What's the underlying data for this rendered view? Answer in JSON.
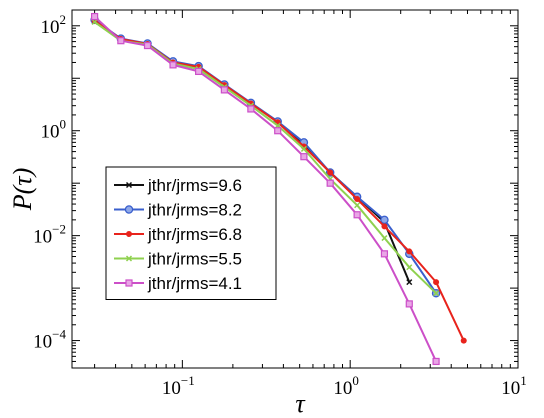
{
  "chart_data": {
    "type": "line",
    "xscale": "log",
    "yscale": "log",
    "xlim": [
      0.022,
      10
    ],
    "ylim": [
      3e-05,
      200
    ],
    "xlabel": "τ",
    "ylabel": "P(τ)",
    "xticks": [
      {
        "value": 0.1,
        "base": "10",
        "exp": "−1"
      },
      {
        "value": 1,
        "base": "10",
        "exp": "0"
      },
      {
        "value": 10,
        "base": "10",
        "exp": "1"
      }
    ],
    "yticks": [
      {
        "value": 100,
        "base": "10",
        "exp": "2"
      },
      {
        "value": 1,
        "base": "10",
        "exp": "0"
      },
      {
        "value": 0.01,
        "base": "10",
        "exp": "−2"
      },
      {
        "value": 0.0001,
        "base": "10",
        "exp": "−4"
      }
    ],
    "grid": false,
    "legend_position": "bottom-left",
    "series": [
      {
        "name": "jthr/jrms=9.6",
        "color": "#111111",
        "marker": "x",
        "x": [
          0.03,
          0.043,
          0.062,
          0.088,
          0.125,
          0.178,
          0.256,
          0.37,
          0.53,
          0.76,
          1.1,
          1.6,
          2.25
        ],
        "y": [
          120,
          55,
          45,
          20,
          16,
          7.5,
          3.3,
          1.5,
          0.52,
          0.16,
          0.055,
          0.018,
          0.0013
        ]
      },
      {
        "name": "jthr/jrms=8.2",
        "color": "#3a5fcd",
        "marker": "o",
        "x": [
          0.03,
          0.043,
          0.062,
          0.088,
          0.125,
          0.178,
          0.256,
          0.37,
          0.53,
          0.76,
          1.1,
          1.6,
          2.25,
          3.25
        ],
        "y": [
          130,
          57,
          46,
          21,
          17,
          7.6,
          3.4,
          1.5,
          0.6,
          0.16,
          0.055,
          0.02,
          0.0045,
          0.0008
        ]
      },
      {
        "name": "jthr/jrms=6.8",
        "color": "#e8231c",
        "marker": "dot",
        "x": [
          0.03,
          0.043,
          0.062,
          0.088,
          0.125,
          0.178,
          0.256,
          0.37,
          0.53,
          0.76,
          1.1,
          1.6,
          2.25,
          3.25,
          4.75
        ],
        "y": [
          125,
          56,
          45,
          20,
          16.5,
          7.4,
          3.3,
          1.45,
          0.5,
          0.16,
          0.05,
          0.015,
          0.005,
          0.0013,
          0.0001
        ]
      },
      {
        "name": "jthr/jrms=5.5",
        "color": "#8fd14f",
        "marker": "x",
        "x": [
          0.03,
          0.043,
          0.062,
          0.088,
          0.125,
          0.178,
          0.256,
          0.37,
          0.53,
          0.76,
          1.1,
          1.6,
          2.25,
          3.25
        ],
        "y": [
          118,
          52,
          44,
          19,
          15,
          6.8,
          3.0,
          1.25,
          0.45,
          0.12,
          0.038,
          0.009,
          0.0025,
          0.0008
        ]
      },
      {
        "name": "jthr/jrms=4.1",
        "color": "#cc4fc8",
        "marker": "square",
        "x": [
          0.03,
          0.043,
          0.062,
          0.088,
          0.125,
          0.178,
          0.256,
          0.37,
          0.53,
          0.76,
          1.1,
          1.6,
          2.25,
          3.25
        ],
        "y": [
          150,
          52,
          42,
          18,
          13.5,
          6.0,
          2.6,
          1.0,
          0.32,
          0.1,
          0.025,
          0.0045,
          0.0005,
          4e-05
        ]
      }
    ]
  }
}
